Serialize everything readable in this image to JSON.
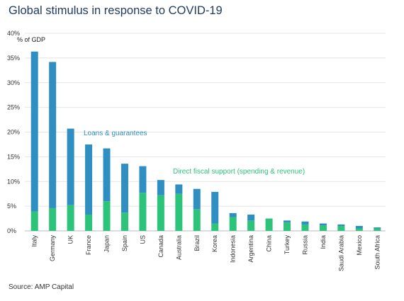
{
  "chart_data": {
    "type": "bar",
    "title": "Global stimulus in response to COVID-19",
    "ylabel": "% of GDP",
    "ylim": [
      0,
      40
    ],
    "yticks": [
      "0%",
      "5%",
      "10%",
      "15%",
      "20%",
      "25%",
      "30%",
      "35%",
      "40%"
    ],
    "stacked": true,
    "grid": true,
    "categories": [
      "Italy",
      "Germany",
      "UK",
      "France",
      "Japan",
      "Spain",
      "US",
      "Canada",
      "Australia",
      "Brazil",
      "Korea",
      "Indonesia",
      "Argentina",
      "China",
      "Turkey",
      "Russia",
      "India",
      "Saudi Arabia",
      "Mexico",
      "South Africa"
    ],
    "series": [
      {
        "name": "Direct fiscal support (spending & revenue)",
        "color": "#2cc37a",
        "values": [
          3.9,
          4.6,
          5.2,
          3.3,
          6.0,
          3.7,
          7.7,
          7.2,
          7.5,
          4.4,
          1.5,
          2.8,
          2.1,
          2.5,
          1.7,
          1.3,
          1.1,
          1.0,
          0.5,
          0.5
        ]
      },
      {
        "name": "Loans & guarantees",
        "color": "#2f8fc2",
        "values": [
          32.4,
          29.6,
          15.5,
          14.2,
          10.7,
          9.9,
          5.4,
          3.1,
          1.9,
          4.1,
          6.4,
          0.8,
          1.2,
          0.0,
          0.4,
          0.6,
          0.4,
          0.3,
          0.5,
          0.2
        ]
      }
    ],
    "annotations": [
      {
        "text": "Loans & guarantees",
        "color": "#2f8fc2"
      },
      {
        "text": "Direct fiscal support (spending & revenue)",
        "color": "#2cc37a"
      }
    ]
  },
  "source": "Source: AMP Capital"
}
